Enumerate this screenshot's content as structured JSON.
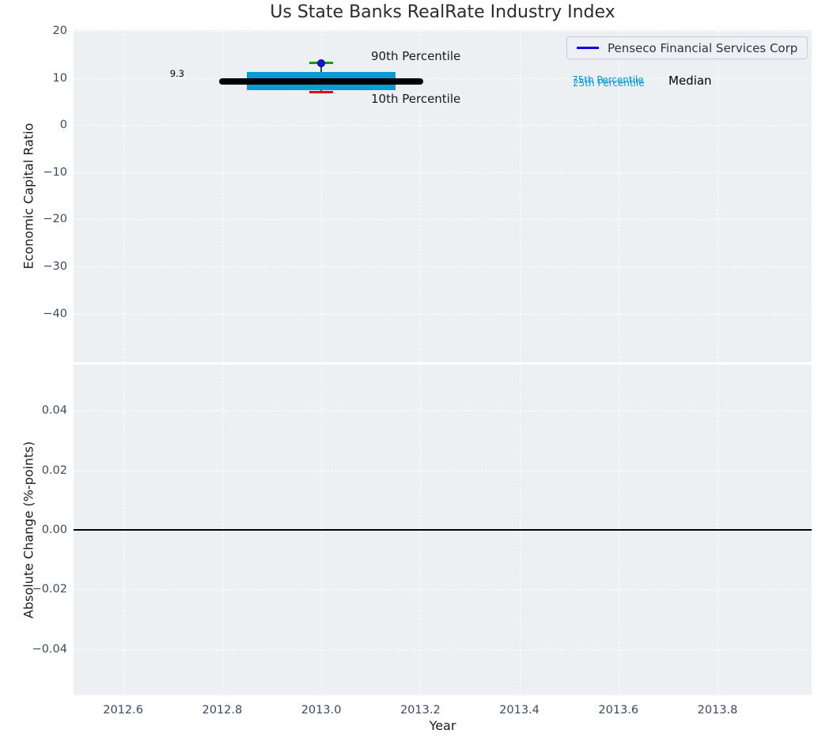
{
  "title": "Us State Banks RealRate Industry Index",
  "legend": {
    "label": "Penseco Financial Services Corp",
    "line_color": "#0000e8"
  },
  "colors": {
    "plot_background": "#edf0f2",
    "grid": "#ffffff",
    "tick_label": "#3d4a5c",
    "box": "#089cd3",
    "median_line": "#000000",
    "p90_cap": "#00a000",
    "p10_cap": "#e60000",
    "company_marker": "#1515e0",
    "zero_line": "#000000"
  },
  "chart_data": [
    {
      "type": "box",
      "title": "Us State Banks RealRate Industry Index",
      "ylabel": "Economic Capital Ratio",
      "xlim": [
        2012.5,
        2013.99
      ],
      "ylim": [
        -50.3,
        20.2
      ],
      "xticks": [
        2012.6,
        2012.8,
        2013.0,
        2013.2,
        2013.4,
        2013.6,
        2013.8
      ],
      "yticks": [
        20,
        10,
        0,
        -10,
        -20,
        -30,
        -40
      ],
      "ytick_labels": [
        "20",
        "10",
        "0",
        "−10",
        "−20",
        "−30",
        "−40"
      ],
      "grid": true,
      "legend_position": "upper right",
      "series": [
        {
          "name": "Penseco Financial Services Corp",
          "x": [
            2013.0
          ],
          "values": [
            13.2
          ],
          "marker": "circle",
          "color": "#1515e0"
        }
      ],
      "industry_percentiles": {
        "x": 2013.0,
        "p10": 7.0,
        "p25": 7.5,
        "median": 9.3,
        "p75": 11.3,
        "p90": 13.2,
        "median_line_x_span": [
          2012.8,
          2013.2
        ],
        "box_x_span": [
          2012.85,
          2013.15
        ]
      },
      "annotations": [
        {
          "id": "median_value",
          "text": "9.3",
          "color": "#000000"
        },
        {
          "id": "p90_label",
          "text": "90th Percentile",
          "color": "#1a1a1a"
        },
        {
          "id": "p10_label",
          "text": "10th Percentile",
          "color": "#1a1a1a"
        },
        {
          "id": "p75_label",
          "text": "75th Percentile",
          "color": "#089cd3"
        },
        {
          "id": "p25_label",
          "text": "25th Percentile",
          "color": "#089cd3"
        },
        {
          "id": "median_label",
          "text": "Median",
          "color": "#000000"
        }
      ]
    },
    {
      "type": "line",
      "xlabel": "Year",
      "ylabel": "Absolute Change (%-points)",
      "xlim": [
        2012.5,
        2013.99
      ],
      "ylim": [
        -0.0555,
        0.0555
      ],
      "xticks": [
        2012.6,
        2012.8,
        2013.0,
        2013.2,
        2013.4,
        2013.6,
        2013.8
      ],
      "xtick_labels": [
        "2012.6",
        "2012.8",
        "2013.0",
        "2013.2",
        "2013.4",
        "2013.6",
        "2013.8"
      ],
      "yticks": [
        0.04,
        0.02,
        0.0,
        -0.02,
        -0.04
      ],
      "ytick_labels": [
        "0.04",
        "0.02",
        "0.00",
        "−0.02",
        "−0.04"
      ],
      "grid": true,
      "zero_line": 0.0,
      "series": []
    }
  ]
}
